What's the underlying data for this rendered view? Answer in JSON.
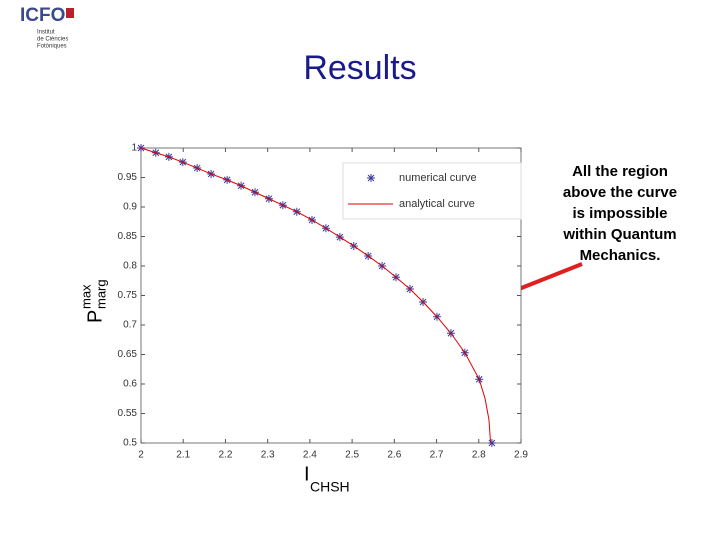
{
  "logo": {
    "name": "ICFO",
    "lines": [
      "Institut",
      "de Ciències",
      "Fotòniques"
    ]
  },
  "title": "Results",
  "annotation": [
    "All the region",
    "above the curve",
    "is impossible",
    "within Quantum",
    "Mechanics."
  ],
  "chart_data": {
    "type": "line",
    "xlabel": {
      "base": "I",
      "sub": "CHSH"
    },
    "ylabel": {
      "base": "P",
      "sub": "marg",
      "sup": "max"
    },
    "xlim": [
      2,
      2.9
    ],
    "xticks": [
      2,
      2.1,
      2.2,
      2.3,
      2.4,
      2.5,
      2.6,
      2.7,
      2.8,
      2.9
    ],
    "ylim": [
      0.5,
      1
    ],
    "yticks": [
      0.5,
      0.55,
      0.6,
      0.65,
      0.7,
      0.75,
      0.8,
      0.85,
      0.9,
      0.95,
      1
    ],
    "legend": "upper right",
    "series": [
      {
        "name": "numerical curve",
        "color": "#3a3a9a",
        "marker": "star",
        "x": [
          2.0,
          2.035,
          2.066,
          2.099,
          2.133,
          2.166,
          2.204,
          2.237,
          2.27,
          2.303,
          2.336,
          2.369,
          2.405,
          2.438,
          2.471,
          2.504,
          2.538,
          2.571,
          2.604,
          2.637,
          2.668,
          2.701,
          2.734,
          2.767,
          2.801,
          2.831
        ],
        "values": [
          1.0,
          0.992,
          0.985,
          0.976,
          0.966,
          0.956,
          0.946,
          0.936,
          0.925,
          0.914,
          0.903,
          0.892,
          0.878,
          0.864,
          0.849,
          0.834,
          0.817,
          0.8,
          0.781,
          0.761,
          0.739,
          0.714,
          0.686,
          0.653,
          0.608,
          0.5
        ]
      },
      {
        "name": "analytical curve",
        "color": "#e00000",
        "marker": "line",
        "x": [
          2.0,
          2.035,
          2.066,
          2.099,
          2.133,
          2.166,
          2.204,
          2.237,
          2.27,
          2.303,
          2.336,
          2.369,
          2.405,
          2.438,
          2.471,
          2.504,
          2.538,
          2.571,
          2.604,
          2.637,
          2.668,
          2.701,
          2.734,
          2.767,
          2.801,
          2.815,
          2.824,
          2.828
        ],
        "values": [
          1.0,
          0.992,
          0.985,
          0.976,
          0.966,
          0.956,
          0.946,
          0.936,
          0.925,
          0.914,
          0.903,
          0.892,
          0.878,
          0.864,
          0.849,
          0.834,
          0.817,
          0.8,
          0.781,
          0.761,
          0.739,
          0.714,
          0.686,
          0.653,
          0.608,
          0.575,
          0.54,
          0.5
        ]
      }
    ]
  }
}
